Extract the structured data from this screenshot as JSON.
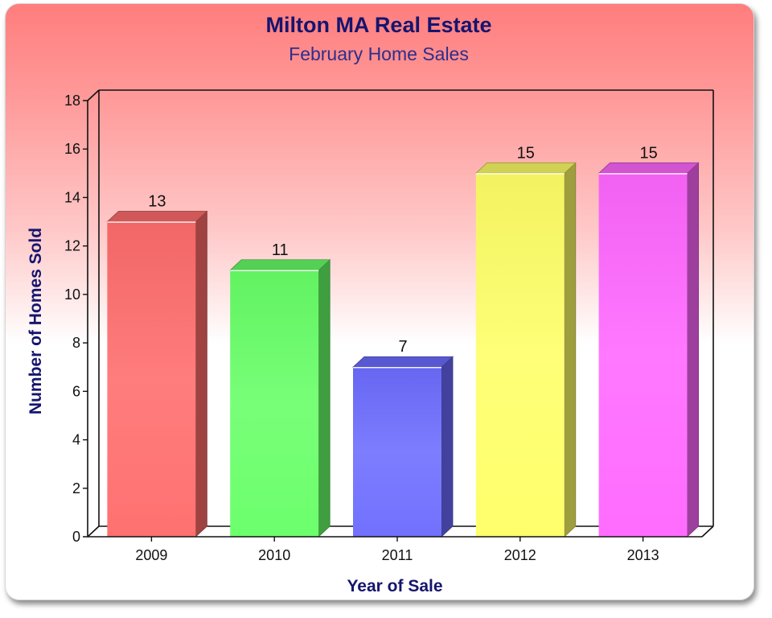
{
  "chart_data": {
    "type": "bar",
    "title": "Milton MA Real Estate",
    "subtitle": "February Home Sales",
    "xlabel": "Year of Sale",
    "ylabel": "Number of Homes Sold",
    "categories": [
      "2009",
      "2010",
      "2011",
      "2012",
      "2013"
    ],
    "values": [
      13,
      11,
      7,
      15,
      15
    ],
    "data_labels": [
      "13",
      "11",
      "7",
      "15",
      "15"
    ],
    "colors": [
      "#ff6b6b",
      "#66ff66",
      "#6b6bff",
      "#ffff66",
      "#ff66ff"
    ],
    "ylim": [
      0,
      18
    ],
    "yticks": [
      "0",
      "2",
      "4",
      "6",
      "8",
      "10",
      "12",
      "14",
      "16",
      "18"
    ],
    "grid": false,
    "legend": "none",
    "style": "3d"
  }
}
